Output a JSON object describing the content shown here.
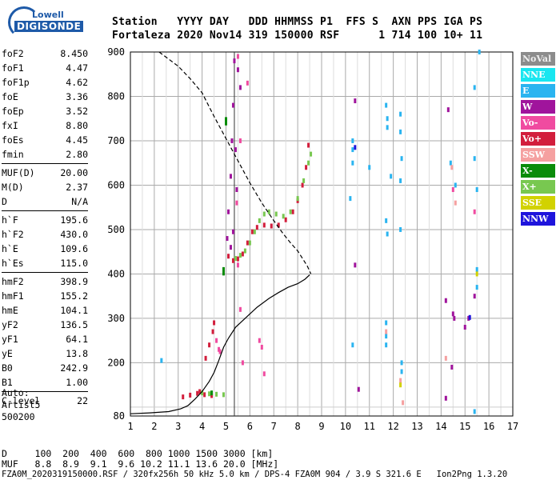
{
  "logo": {
    "line1": "Lowell",
    "line2": "DIGISONDE"
  },
  "header": {
    "line1": "Station   YYYY DAY   DDD HHMMSS P1  FFS S  AXN PPS IGA PS",
    "line2": "Fortaleza 2020 Nov14 319 150000 RSF      1 714 100 10+ 11"
  },
  "params_groups": [
    [
      [
        "foF2",
        "8.450"
      ],
      [
        "foF1",
        "4.47"
      ],
      [
        "foF1p",
        "4.62"
      ],
      [
        "foE",
        "3.36"
      ],
      [
        "foEp",
        "3.52"
      ],
      [
        "fxI",
        "8.80"
      ],
      [
        "foEs",
        "4.45"
      ],
      [
        "fmin",
        "2.80"
      ]
    ],
    [
      [
        "MUF(D)",
        "20.00"
      ],
      [
        "M(D)",
        "2.37"
      ],
      [
        "D",
        "N/A"
      ]
    ],
    [
      [
        "h`F",
        "195.6"
      ],
      [
        "h`F2",
        "430.0"
      ],
      [
        "h`E",
        "109.6"
      ],
      [
        "h`Es",
        "115.0"
      ]
    ],
    [
      [
        "hmF2",
        "398.9"
      ],
      [
        "hmF1",
        "155.2"
      ],
      [
        "hmE",
        "104.1"
      ],
      [
        "yF2",
        "136.5"
      ],
      [
        "yF1",
        "64.1"
      ],
      [
        "yE",
        "13.8"
      ],
      [
        "B0",
        "242.9"
      ],
      [
        "B1",
        "1.00"
      ]
    ],
    [
      [
        "C-level",
        "22"
      ]
    ]
  ],
  "auto": {
    "l1": "Auto:",
    "l2": "Artist5",
    "l3": "500200"
  },
  "footer": {
    "d_line": "D     100  200  400  600  800 1000 1500 3000 [km]",
    "muf_line": "MUF   8.8  8.9  9.1  9.6 10.2 11.1 13.6 20.0 [MHz]",
    "info_line": "FZA0M_2020319150000.RSF / 320fx256h 50 kHz 5.0 km / DPS-4 FZA0M 904 / 3.9 S 321.6 E   Ion2Png 1.3.20"
  },
  "legend": [
    {
      "label": "NoVal",
      "color": "#8c8c8c"
    },
    {
      "label": "NNE",
      "color": "#19e6f0"
    },
    {
      "label": "E",
      "color": "#2ab4f0"
    },
    {
      "label": "W",
      "color": "#a0149c"
    },
    {
      "label": "Vo-",
      "color": "#f04ba0"
    },
    {
      "label": "Vo+",
      "color": "#d21e3c"
    },
    {
      "label": "SSW",
      "color": "#f5a0a0"
    },
    {
      "label": "X-",
      "color": "#0a8c0a"
    },
    {
      "label": "X+",
      "color": "#78c850"
    },
    {
      "label": "SSE",
      "color": "#d2d200"
    },
    {
      "label": "NNW",
      "color": "#1e14dc"
    }
  ],
  "chart_data": {
    "type": "scatter",
    "x_ticks": [
      "1",
      "2",
      "3",
      "4",
      "5",
      "6",
      "7",
      "8",
      "9",
      "10",
      "11",
      "12",
      "13",
      "14",
      "15",
      "16",
      "17"
    ],
    "y_ticks": [
      "80",
      "200",
      "300",
      "400",
      "500",
      "600",
      "700",
      "800",
      "900"
    ],
    "xlim": [
      1,
      17
    ],
    "ylim": [
      80,
      900
    ],
    "grid": true,
    "vline_x": 5.35,
    "series": [
      {
        "color": "#d21e3c",
        "points": [
          [
            5.1,
            440
          ],
          [
            5.3,
            430
          ],
          [
            5.5,
            434
          ],
          [
            5.7,
            445
          ],
          [
            5.9,
            470
          ],
          [
            6.1,
            495
          ],
          [
            6.3,
            505
          ],
          [
            6.6,
            510
          ],
          [
            6.9,
            508
          ],
          [
            7.2,
            510
          ],
          [
            7.5,
            522
          ],
          [
            7.8,
            540
          ],
          [
            8.0,
            565
          ],
          [
            8.2,
            600
          ],
          [
            8.35,
            640
          ],
          [
            8.45,
            690
          ],
          [
            3.2,
            123
          ],
          [
            3.5,
            127
          ],
          [
            3.8,
            131
          ],
          [
            4.1,
            128
          ],
          [
            4.4,
            126
          ],
          [
            3.9,
            135
          ],
          [
            4.15,
            210
          ],
          [
            4.3,
            240
          ],
          [
            4.45,
            270
          ],
          [
            4.5,
            290
          ]
        ]
      },
      {
        "color": "#78c850",
        "points": [
          [
            5.4,
            435
          ],
          [
            5.6,
            442
          ],
          [
            5.8,
            452
          ],
          [
            6.0,
            470
          ],
          [
            6.2,
            495
          ],
          [
            6.4,
            520
          ],
          [
            6.6,
            535
          ],
          [
            6.8,
            540
          ],
          [
            7.1,
            535
          ],
          [
            7.4,
            530
          ],
          [
            7.7,
            540
          ],
          [
            8.0,
            570
          ],
          [
            8.25,
            610
          ],
          [
            8.45,
            650
          ],
          [
            8.55,
            670
          ],
          [
            4.0,
            132
          ],
          [
            4.3,
            130
          ],
          [
            4.6,
            129
          ],
          [
            4.9,
            128
          ]
        ]
      },
      {
        "color": "#0a8c0a",
        "points": [
          [
            5.0,
            748
          ],
          [
            5.0,
            740
          ],
          [
            4.9,
            410
          ],
          [
            4.9,
            402
          ],
          [
            4.4,
            132
          ]
        ]
      },
      {
        "color": "#a0149c",
        "points": [
          [
            5.05,
            480
          ],
          [
            5.1,
            540
          ],
          [
            5.2,
            620
          ],
          [
            5.25,
            700
          ],
          [
            5.3,
            780
          ],
          [
            5.35,
            880
          ],
          [
            5.5,
            860
          ],
          [
            5.6,
            820
          ],
          [
            5.4,
            680
          ],
          [
            5.45,
            590
          ],
          [
            5.3,
            495
          ],
          [
            5.2,
            460
          ],
          [
            10.4,
            790
          ],
          [
            10.4,
            420
          ],
          [
            10.55,
            140
          ],
          [
            14.3,
            770
          ],
          [
            14.2,
            340
          ],
          [
            14.5,
            310
          ],
          [
            14.55,
            300
          ],
          [
            14.45,
            190
          ],
          [
            15.0,
            280
          ],
          [
            15.15,
            300
          ],
          [
            15.4,
            350
          ],
          [
            14.2,
            120
          ]
        ]
      },
      {
        "color": "#f04ba0",
        "points": [
          [
            5.5,
            890
          ],
          [
            5.6,
            700
          ],
          [
            5.45,
            560
          ],
          [
            5.5,
            420
          ],
          [
            5.6,
            320
          ],
          [
            5.7,
            200
          ],
          [
            5.9,
            830
          ],
          [
            14.5,
            590
          ],
          [
            15.4,
            540
          ],
          [
            6.4,
            250
          ],
          [
            6.5,
            235
          ],
          [
            6.6,
            175
          ],
          [
            4.7,
            230
          ],
          [
            4.75,
            225
          ],
          [
            4.6,
            250
          ]
        ]
      },
      {
        "color": "#2ab4f0",
        "points": [
          [
            10.3,
            700
          ],
          [
            10.3,
            680
          ],
          [
            10.3,
            650
          ],
          [
            10.2,
            570
          ],
          [
            11.0,
            640
          ],
          [
            11.7,
            780
          ],
          [
            11.75,
            750
          ],
          [
            11.75,
            730
          ],
          [
            11.9,
            620
          ],
          [
            11.7,
            520
          ],
          [
            11.75,
            490
          ],
          [
            12.3,
            760
          ],
          [
            12.3,
            720
          ],
          [
            12.35,
            660
          ],
          [
            12.3,
            610
          ],
          [
            12.3,
            500
          ],
          [
            12.35,
            200
          ],
          [
            12.35,
            180
          ],
          [
            11.7,
            290
          ],
          [
            11.7,
            260
          ],
          [
            11.7,
            240
          ],
          [
            14.4,
            650
          ],
          [
            14.6,
            600
          ],
          [
            15.4,
            660
          ],
          [
            15.5,
            590
          ],
          [
            15.5,
            410
          ],
          [
            15.5,
            370
          ],
          [
            15.4,
            90
          ],
          [
            2.3,
            205
          ],
          [
            10.3,
            240
          ],
          [
            15.4,
            820
          ],
          [
            15.6,
            900
          ]
        ]
      },
      {
        "color": "#f5a0a0",
        "points": [
          [
            12.4,
            110
          ],
          [
            12.3,
            160
          ],
          [
            11.7,
            270
          ],
          [
            14.2,
            210
          ],
          [
            14.6,
            560
          ],
          [
            14.45,
            640
          ]
        ]
      },
      {
        "color": "#d2d200",
        "points": [
          [
            15.5,
            400
          ],
          [
            12.3,
            150
          ]
        ]
      },
      {
        "color": "#1e14dc",
        "points": [
          [
            10.4,
            685
          ],
          [
            15.2,
            302
          ]
        ]
      }
    ],
    "lines": [
      {
        "color": "#000",
        "style": "dashed",
        "points": [
          [
            2.2,
            900
          ],
          [
            3.0,
            868
          ],
          [
            3.5,
            840
          ],
          [
            4.0,
            808
          ],
          [
            4.5,
            755
          ],
          [
            5.0,
            705
          ],
          [
            5.5,
            655
          ],
          [
            6.0,
            605
          ],
          [
            6.5,
            560
          ],
          [
            7.0,
            520
          ],
          [
            7.4,
            490
          ],
          [
            7.7,
            470
          ],
          [
            8.0,
            452
          ],
          [
            8.2,
            435
          ],
          [
            8.4,
            418
          ],
          [
            8.55,
            400
          ]
        ]
      },
      {
        "color": "#000",
        "style": "solid",
        "points": [
          [
            1.0,
            85
          ],
          [
            1.8,
            87
          ],
          [
            2.6,
            90
          ],
          [
            3.1,
            96
          ],
          [
            3.4,
            103
          ],
          [
            3.7,
            118
          ],
          [
            4.0,
            135
          ],
          [
            4.3,
            158
          ],
          [
            4.5,
            178
          ],
          [
            4.7,
            205
          ],
          [
            4.9,
            235
          ],
          [
            5.1,
            255
          ],
          [
            5.4,
            280
          ],
          [
            5.8,
            300
          ],
          [
            6.3,
            325
          ],
          [
            6.8,
            345
          ],
          [
            7.2,
            358
          ],
          [
            7.6,
            370
          ],
          [
            8.0,
            378
          ],
          [
            8.3,
            388
          ],
          [
            8.5,
            398
          ]
        ]
      }
    ]
  }
}
